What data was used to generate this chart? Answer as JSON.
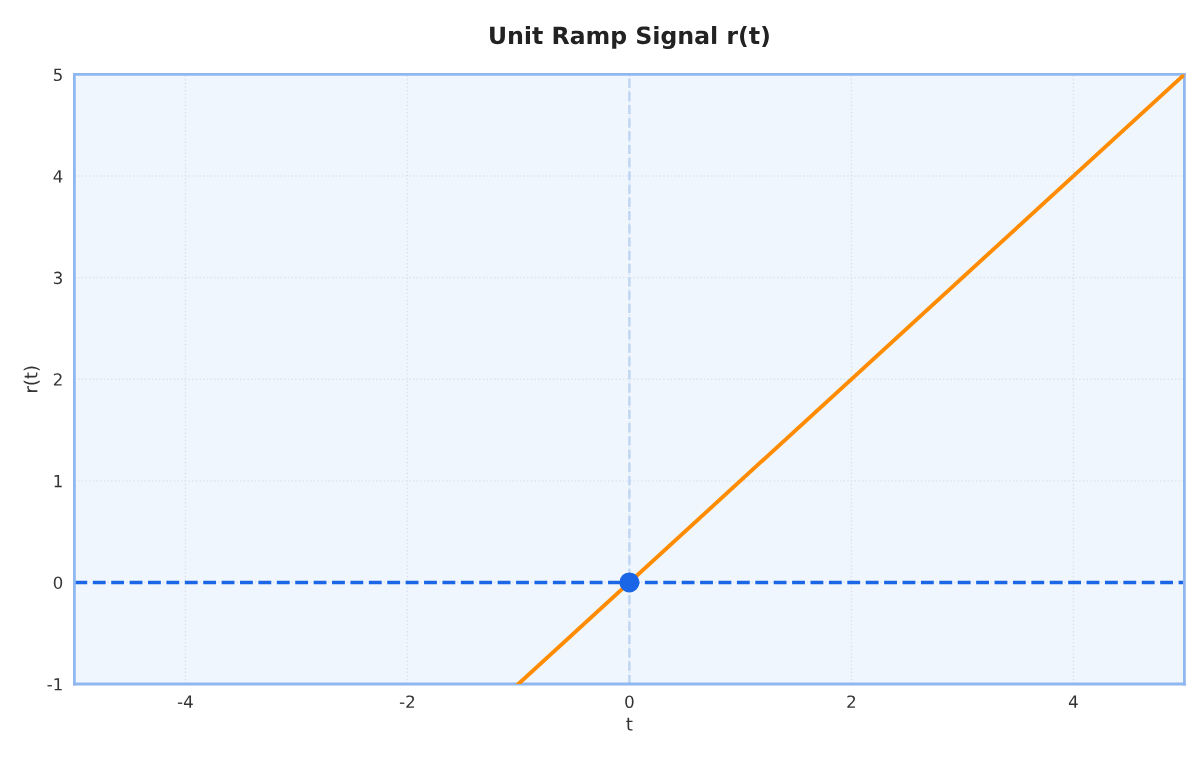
{
  "chart_data": {
    "type": "line",
    "title": "Unit Ramp Signal r(t)",
    "xlabel": "t",
    "ylabel": "r(t)",
    "series": [
      {
        "color": "#ff8c00",
        "x": [
          -1,
          5
        ],
        "values": [
          -1,
          5
        ]
      },
      {
        "type": "scatter",
        "color": "#1a66e6",
        "x": [
          0
        ],
        "values": [
          0
        ]
      }
    ],
    "xlim": [
      -5,
      5
    ],
    "xticks": [
      -4,
      -2,
      0,
      2,
      4
    ],
    "ylim": [
      -1,
      5
    ],
    "yticks": [
      -1,
      0,
      1,
      2,
      3,
      4,
      5
    ],
    "ref_lines": [
      {
        "axis": "y",
        "value": 0,
        "color": "#1a66e6",
        "line_style": "dashed"
      },
      {
        "axis": "x",
        "value": 0,
        "color": "#c0d6f2",
        "line_style": "dashed"
      }
    ],
    "grid": true,
    "legend": false
  }
}
